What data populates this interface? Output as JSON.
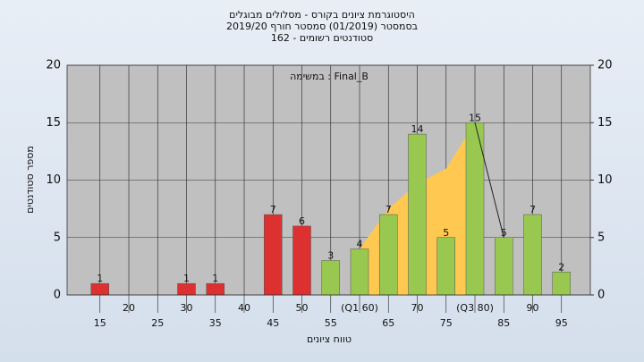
{
  "chart_data": {
    "type": "bar",
    "title": [
      "היסטוגרמת ציונים בקורס - מסלולים מבוגלים",
      "בסמסטר (01/2019) סמסטר חורף 2019/20",
      "סטודנטים רשומים - 162"
    ],
    "annotation": "במשימה : Final_B",
    "x_label": "טווח ציונים",
    "y_label": "מספר סטודנטים",
    "x": [
      15,
      20,
      25,
      30,
      35,
      40,
      45,
      50,
      55,
      60,
      65,
      70,
      75,
      80,
      85,
      90,
      95
    ],
    "xticks": [
      15,
      20,
      25,
      30,
      35,
      40,
      45,
      50,
      55,
      {
        "value": 60,
        "label": "(Q1 60)"
      },
      65,
      70,
      75,
      {
        "value": 80,
        "label": "(Q3 80)"
      },
      85,
      90,
      95
    ],
    "xlim": [
      9.3,
      100
    ],
    "values": [
      1,
      0,
      0,
      1,
      1,
      0,
      7,
      6,
      3,
      4,
      7,
      14,
      5,
      15,
      5,
      7,
      2
    ],
    "colors": [
      "#dd3030",
      "#dd3030",
      "#dd3030",
      "#dd3030",
      "#dd3030",
      "#dd3030",
      "#dd3030",
      "#dd3030",
      "#99c850",
      "#99c850",
      "#99c850",
      "#99c850",
      "#99c850",
      "#99c850",
      "#99c850",
      "#99c850",
      "#99c850"
    ],
    "area": {
      "x": [
        60,
        65,
        70,
        75,
        80
      ],
      "values": [
        4,
        7.5,
        9.7,
        11,
        15
      ],
      "color": "#ffc850"
    },
    "line": {
      "x": [
        80,
        85
      ],
      "values": [
        15,
        5
      ],
      "color": "#222222"
    },
    "ylim": [
      0,
      20
    ],
    "yticks": [
      0,
      5,
      10,
      15,
      20
    ],
    "y2lim": [
      0,
      20
    ],
    "y2ticks": [
      0,
      5,
      10,
      15,
      20
    ],
    "grid": true
  }
}
